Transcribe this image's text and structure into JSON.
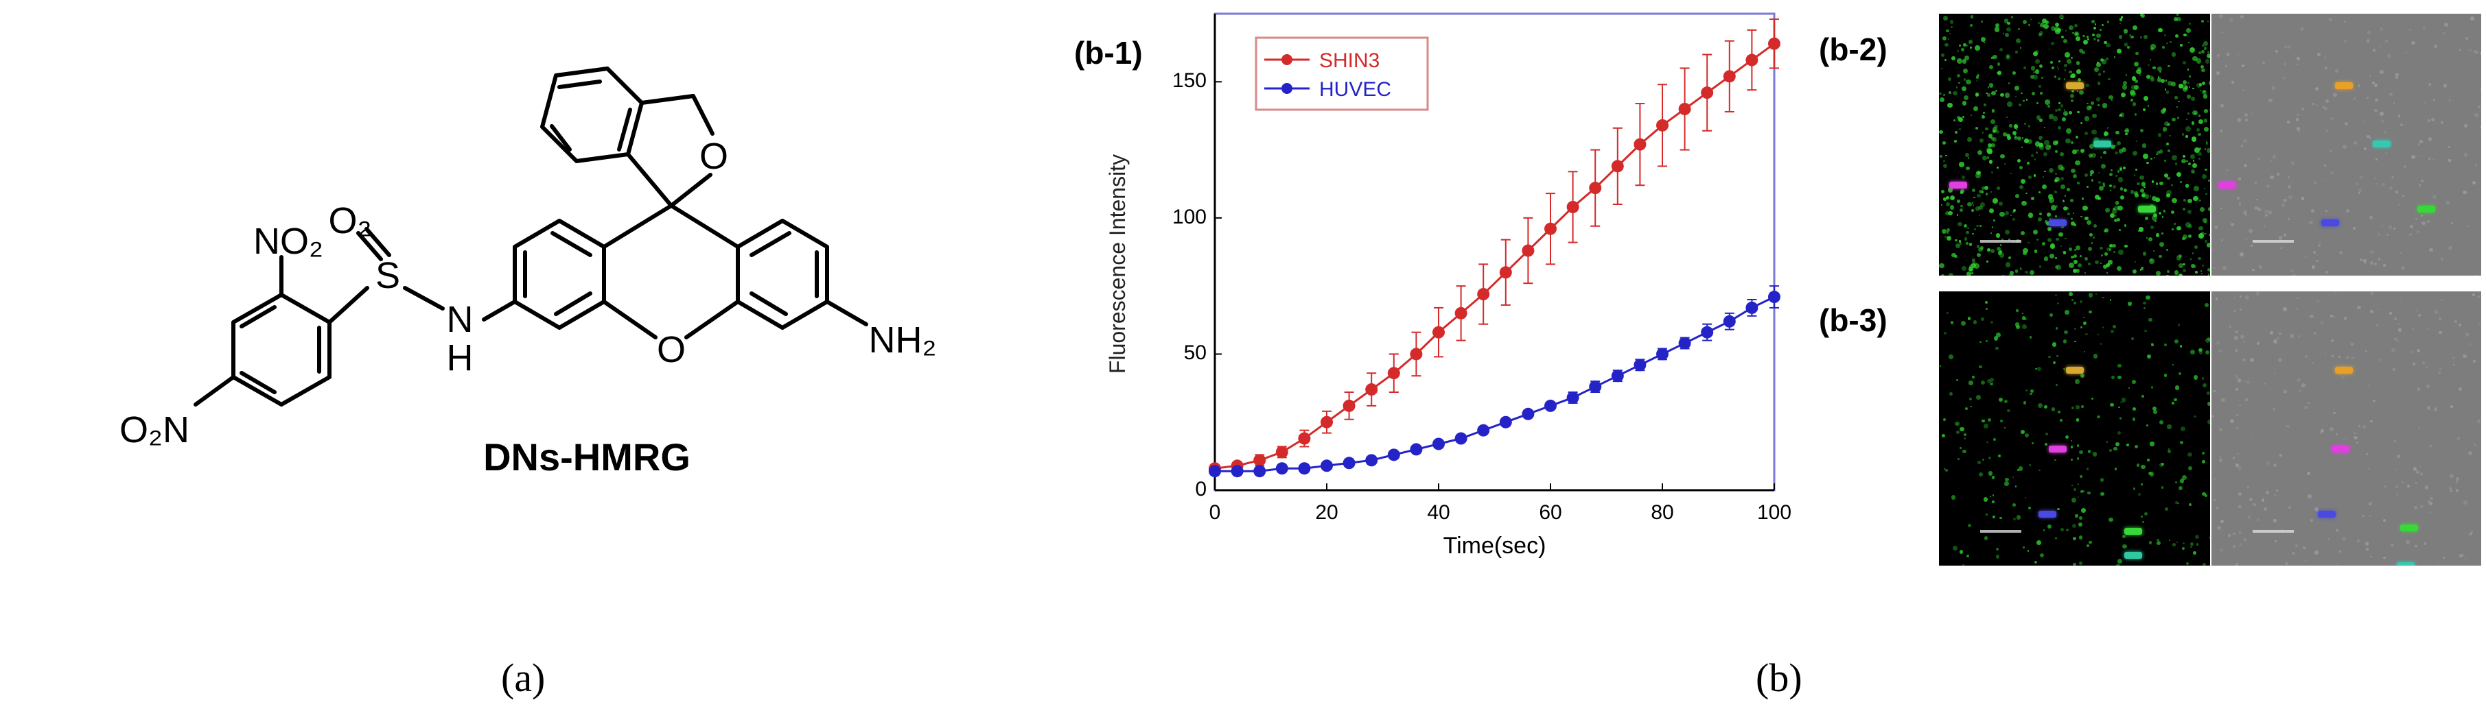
{
  "figure": {
    "panel_a_caption": "(a)",
    "panel_b_caption": "(b)",
    "sub_b1": "(b-1)",
    "sub_b2": "(b-2)",
    "sub_b3": "(b-3)"
  },
  "molecule": {
    "name": "DNs-HMRG",
    "no2_top": "NO₂",
    "o2n_left": "O₂N",
    "so2_o2": "O₂",
    "s": "S",
    "nh_n": "N",
    "nh_h": "H",
    "ring_o": "O",
    "lactone_o": "O",
    "nh2": "NH₂"
  },
  "chart_data": {
    "type": "line",
    "xlabel": "Time(sec)",
    "ylabel": "Fluorescence Intensity",
    "xlim": [
      0,
      100
    ],
    "ylim": [
      0,
      175
    ],
    "xticks": [
      0,
      20,
      40,
      60,
      80,
      100
    ],
    "yticks": [
      0,
      50,
      100,
      150
    ],
    "grid": true,
    "legend_position": "top-left",
    "x": [
      0,
      4,
      8,
      12,
      16,
      20,
      24,
      28,
      32,
      36,
      40,
      44,
      48,
      52,
      56,
      60,
      64,
      68,
      72,
      76,
      80,
      84,
      88,
      92,
      96,
      100
    ],
    "series": [
      {
        "name": "SHIN3",
        "color": "#d42a2a",
        "values": [
          8,
          9,
          11,
          14,
          19,
          25,
          31,
          37,
          43,
          50,
          58,
          65,
          72,
          80,
          88,
          96,
          104,
          111,
          119,
          127,
          134,
          140,
          146,
          152,
          158,
          164
        ],
        "errors": [
          1,
          1,
          2,
          2,
          3,
          4,
          5,
          6,
          7,
          8,
          9,
          10,
          11,
          12,
          12,
          13,
          13,
          14,
          14,
          15,
          15,
          15,
          14,
          13,
          11,
          9
        ]
      },
      {
        "name": "HUVEC",
        "color": "#2323c8",
        "values": [
          7,
          7,
          7,
          8,
          8,
          9,
          10,
          11,
          13,
          15,
          17,
          19,
          22,
          25,
          28,
          31,
          34,
          38,
          42,
          46,
          50,
          54,
          58,
          62,
          67,
          71
        ],
        "errors": [
          1,
          1,
          1,
          1,
          1,
          1,
          1,
          1,
          1,
          1,
          1,
          1,
          1,
          1,
          1,
          1,
          2,
          2,
          2,
          2,
          2,
          2,
          3,
          3,
          3,
          4
        ]
      }
    ]
  },
  "micrographs": {
    "b2": {
      "fluor_dots": [
        "#d8a830",
        "#2ec9a0",
        "#e040e0",
        "#4a4ae0",
        "#38d838"
      ],
      "bright_dots": [
        "#e8a028",
        "#36c8b0",
        "#e040e0",
        "#4a4ae0",
        "#38d838"
      ]
    },
    "b3": {
      "fluor_dots": [
        "#d8a830",
        "#e040e0",
        "#4a4ae0",
        "#38d838",
        "#2ec9a0"
      ],
      "bright_dots": [
        "#e8a028",
        "#e040e0",
        "#4a4ae0",
        "#38d838",
        "#36c8b0"
      ]
    }
  }
}
